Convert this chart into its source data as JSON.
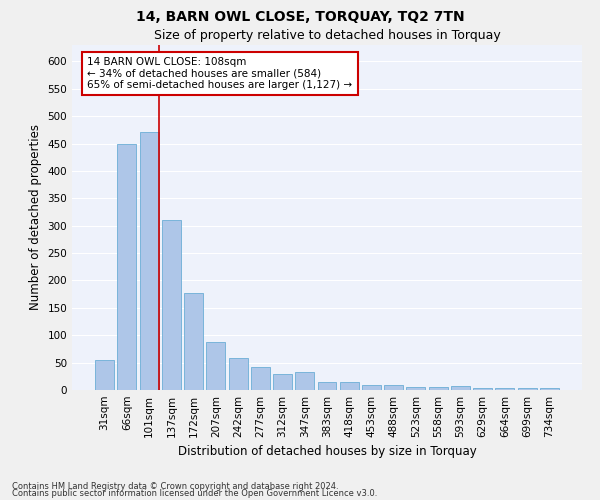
{
  "title": "14, BARN OWL CLOSE, TORQUAY, TQ2 7TN",
  "subtitle": "Size of property relative to detached houses in Torquay",
  "xlabel": "Distribution of detached houses by size in Torquay",
  "ylabel": "Number of detached properties",
  "footnote1": "Contains HM Land Registry data © Crown copyright and database right 2024.",
  "footnote2": "Contains public sector information licensed under the Open Government Licence v3.0.",
  "categories": [
    "31sqm",
    "66sqm",
    "101sqm",
    "137sqm",
    "172sqm",
    "207sqm",
    "242sqm",
    "277sqm",
    "312sqm",
    "347sqm",
    "383sqm",
    "418sqm",
    "453sqm",
    "488sqm",
    "523sqm",
    "558sqm",
    "593sqm",
    "629sqm",
    "664sqm",
    "699sqm",
    "734sqm"
  ],
  "values": [
    55,
    450,
    472,
    311,
    177,
    88,
    58,
    42,
    30,
    32,
    15,
    15,
    10,
    10,
    6,
    6,
    8,
    3,
    3,
    3,
    4
  ],
  "bar_color": "#aec6e8",
  "bar_edge_color": "#6baed6",
  "annotation_line1": "14 BARN OWL CLOSE: 108sqm",
  "annotation_line2": "← 34% of detached houses are smaller (584)",
  "annotation_line3": "65% of semi-detached houses are larger (1,127) →",
  "annotation_box_color": "#ffffff",
  "annotation_box_edge_color": "#cc0000",
  "red_line_color": "#cc0000",
  "red_line_x": 2.43,
  "ylim": [
    0,
    630
  ],
  "yticks": [
    0,
    50,
    100,
    150,
    200,
    250,
    300,
    350,
    400,
    450,
    500,
    550,
    600
  ],
  "background_color": "#eef2fb",
  "grid_color": "#ffffff",
  "title_fontsize": 10,
  "subtitle_fontsize": 9,
  "axis_label_fontsize": 8.5,
  "tick_fontsize": 7.5,
  "annotation_fontsize": 7.5
}
